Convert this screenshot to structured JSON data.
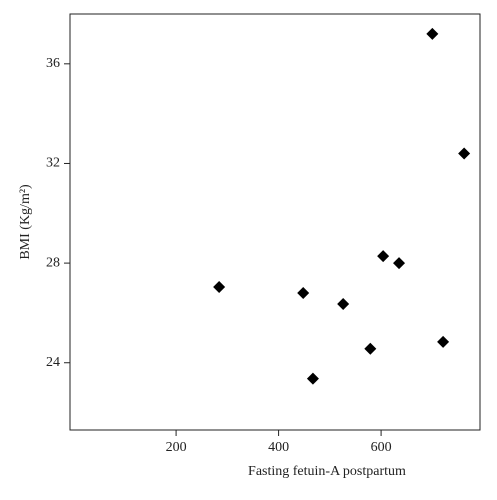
{
  "chart_data": {
    "type": "scatter",
    "x_label": "Fasting fetuin-A postpartum",
    "y_label": "BMI (Kg/m²)",
    "x": [
      284,
      448,
      467,
      526,
      579,
      604,
      635,
      700,
      721,
      762
    ],
    "values": [
      27.04,
      26.8,
      23.36,
      26.36,
      24.56,
      28.28,
      28.0,
      37.2,
      24.84,
      32.4
    ],
    "color": "#000000",
    "xlim": [
      -7,
      793
    ],
    "xticks": [
      200,
      400,
      600
    ],
    "ylim": [
      21.3,
      38
    ],
    "yticks": [
      24,
      28,
      32,
      36
    ]
  }
}
